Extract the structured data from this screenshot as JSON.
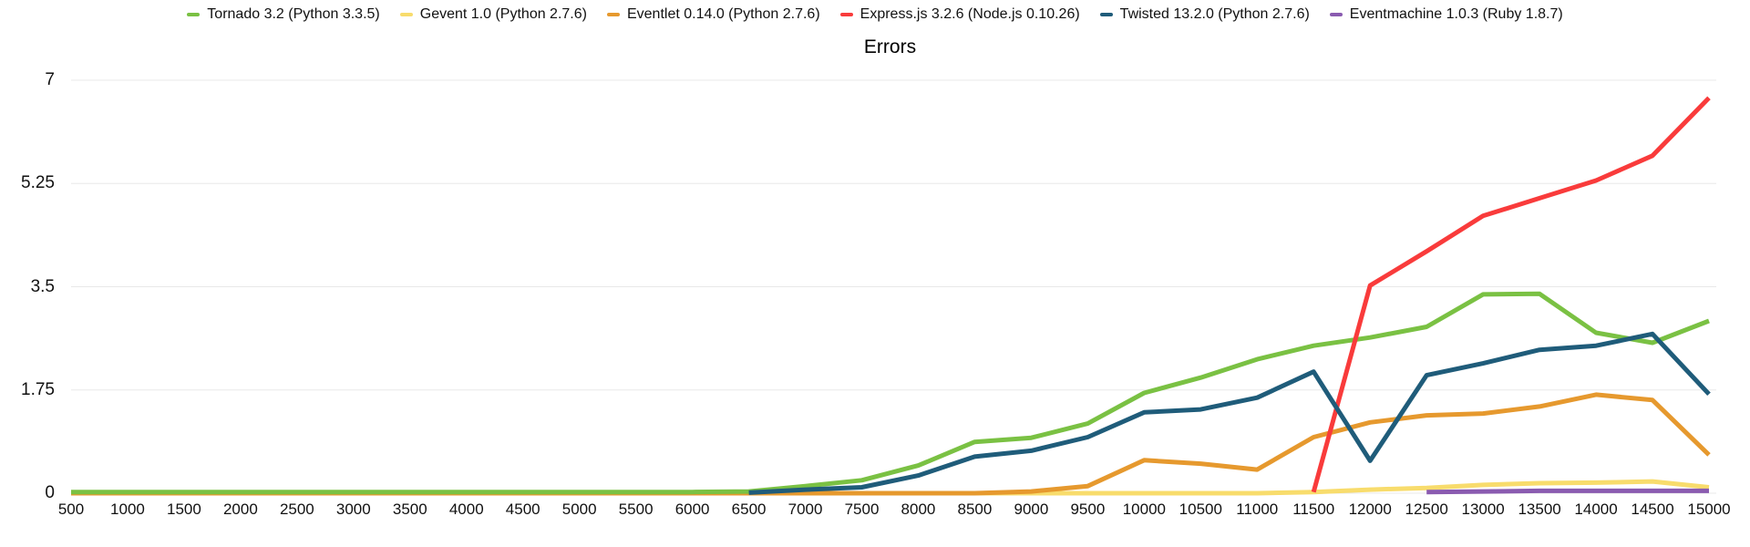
{
  "chart_data": {
    "type": "line",
    "title": "Errors",
    "xlabel": "",
    "ylabel": "",
    "ylim": [
      0,
      7
    ],
    "grid": true,
    "legend_position": "top",
    "gridline_color": "#e8e8e8",
    "x": [
      500,
      1000,
      1500,
      2000,
      2500,
      3000,
      3500,
      4000,
      4500,
      5000,
      5500,
      6000,
      6500,
      7000,
      7500,
      8000,
      8500,
      9000,
      9500,
      10000,
      10500,
      11000,
      11500,
      12000,
      12500,
      13000,
      13500,
      14000,
      14500,
      15000
    ],
    "x_tick_labels": [
      "500",
      "1000",
      "1500",
      "2000",
      "2500",
      "3000",
      "3500",
      "4000",
      "4500",
      "5000",
      "5500",
      "6000",
      "6500",
      "7000",
      "7500",
      "8000",
      "8500",
      "9000",
      "9500",
      "10000",
      "10500",
      "11000",
      "11500",
      "12000",
      "12500",
      "13000",
      "13500",
      "14000",
      "14500",
      "15000"
    ],
    "y_ticks": [
      {
        "label": "0",
        "value": 0
      },
      {
        "label": "1.75",
        "value": 1.75
      },
      {
        "label": "3.5",
        "value": 3.5
      },
      {
        "label": "5.25",
        "value": 5.25
      },
      {
        "label": "7",
        "value": 7
      }
    ],
    "series": [
      {
        "name": "Tornado 3.2 (Python 3.3.5)",
        "color": "#7AC143",
        "values": [
          0.02,
          0.02,
          0.02,
          0.02,
          0.02,
          0.02,
          0.02,
          0.02,
          0.02,
          0.02,
          0.02,
          0.02,
          0.03,
          0.12,
          0.22,
          0.47,
          0.87,
          0.94,
          1.18,
          1.7,
          1.96,
          2.27,
          2.5,
          2.64,
          2.82,
          3.37,
          3.38,
          2.72,
          2.55,
          2.92
        ]
      },
      {
        "name": "Gevent 1.0 (Python 2.7.6)",
        "color": "#F8DC6C",
        "values": [
          0,
          0,
          0,
          0,
          0,
          0,
          0,
          0,
          0,
          0,
          0,
          0,
          0,
          0,
          0,
          0,
          0,
          0,
          0,
          0,
          0,
          0,
          0.02,
          0.06,
          0.09,
          0.14,
          0.17,
          0.18,
          0.2,
          0.1
        ]
      },
      {
        "name": "Eventlet 0.14.0 (Python 2.7.6)",
        "color": "#E6992E",
        "values": [
          0,
          0,
          0,
          0,
          0,
          0,
          0,
          0,
          0,
          0,
          0,
          0,
          0,
          0,
          0,
          0,
          0,
          0.03,
          0.12,
          0.56,
          0.5,
          0.4,
          0.95,
          1.2,
          1.32,
          1.35,
          1.47,
          1.67,
          1.58,
          0.65
        ]
      },
      {
        "name": "Express.js 3.2.6 (Node.js 0.10.26)",
        "color": "#F93B3B",
        "values": [
          null,
          null,
          null,
          null,
          null,
          null,
          null,
          null,
          null,
          null,
          null,
          null,
          null,
          null,
          null,
          null,
          null,
          null,
          null,
          null,
          null,
          null,
          0.02,
          3.52,
          4.1,
          4.7,
          5.0,
          5.3,
          5.72,
          6.7
        ]
      },
      {
        "name": "Twisted 13.2.0 (Python 2.7.6)",
        "color": "#1F5C7A",
        "values": [
          null,
          null,
          null,
          null,
          null,
          null,
          null,
          null,
          null,
          null,
          null,
          null,
          0.01,
          0.06,
          0.1,
          0.3,
          0.62,
          0.72,
          0.95,
          1.37,
          1.42,
          1.62,
          2.06,
          0.55,
          2.0,
          2.2,
          2.43,
          2.5,
          2.7,
          1.68
        ]
      },
      {
        "name": "Eventmachine 1.0.3 (Ruby 1.8.7)",
        "color": "#8A5BB0",
        "values": [
          null,
          null,
          null,
          null,
          null,
          null,
          null,
          null,
          null,
          null,
          null,
          null,
          null,
          null,
          null,
          null,
          null,
          null,
          null,
          null,
          null,
          null,
          null,
          null,
          0.02,
          0.03,
          0.04,
          0.04,
          0.04,
          0.04
        ]
      }
    ],
    "draw_order": [
      1,
      2,
      0,
      3,
      4,
      5
    ]
  }
}
